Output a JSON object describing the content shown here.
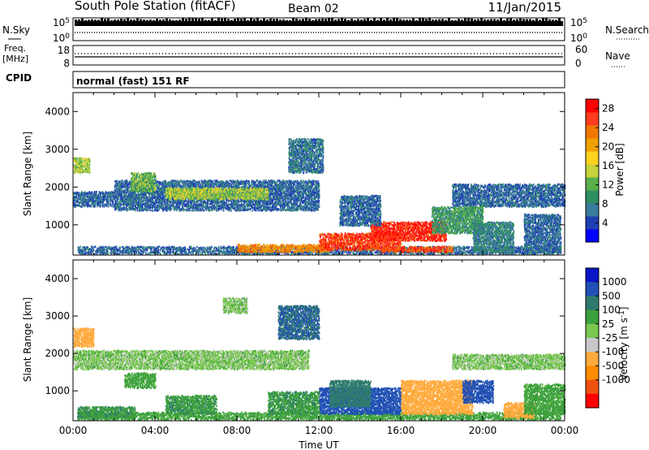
{
  "header": {
    "title": "South Pole Station (fitACF)",
    "beam": "Beam 02",
    "date": "11/Jan/2015"
  },
  "params": {
    "nsky_label": "N.Sky",
    "nsky_top": "10^5",
    "nsky_bottom": "10^0",
    "nsearch_label": "N.Search",
    "nsearch_top": "10^5",
    "nsearch_bottom": "10^0",
    "freq_label": "Freq.",
    "freq_unit": "[MHz]",
    "freq_top": "18",
    "freq_bottom": "8",
    "nave_label": "Nave",
    "nave_top": "60",
    "nave_bottom": "0",
    "cpid_label": "CPID",
    "cpid_text": "normal (fast) 151 RF"
  },
  "colors": {
    "power": [
      "#0000ff",
      "#1e3fb4",
      "#3a7a9a",
      "#2f8f60",
      "#5ab04a",
      "#c8d23c",
      "#ffd21e",
      "#f0a000",
      "#f07800",
      "#ff3c1e",
      "#ff0000"
    ],
    "velocity": [
      "#ff0000",
      "#f05010",
      "#ff8c00",
      "#ffaa3c",
      "#c8c8c8",
      "#7ac850",
      "#3ca03c",
      "#2e7a6e",
      "#2050b4",
      "#0a14c8"
    ]
  },
  "chart_data": [
    {
      "type": "heatmap",
      "name": "power",
      "xlabel": "",
      "ylabel": "Slant Range [km]",
      "xlim": [
        "00:00",
        "24:00"
      ],
      "ylim": [
        200,
        4500
      ],
      "yticks": [
        "1000",
        "2000",
        "3000",
        "4000"
      ],
      "colorbar": {
        "label": "Power [dB]",
        "ticks": [
          "4",
          "8",
          "12",
          "16",
          "20",
          "24",
          "28"
        ],
        "range": [
          0,
          30
        ]
      },
      "regions": [
        {
          "t0": 0.2,
          "t1": 23.8,
          "r0": 250,
          "r1": 450,
          "value": 6
        },
        {
          "t0": 8.0,
          "t1": 12.5,
          "r0": 300,
          "r1": 500,
          "value": 22
        },
        {
          "t0": 12.0,
          "t1": 16.0,
          "r0": 350,
          "r1": 800,
          "value": 26
        },
        {
          "t0": 14.5,
          "t1": 18.2,
          "r0": 600,
          "r1": 1100,
          "value": 27
        },
        {
          "t0": 15.0,
          "t1": 18.5,
          "r0": 300,
          "r1": 450,
          "value": 25
        },
        {
          "t0": 0.0,
          "t1": 2.0,
          "r0": 1500,
          "r1": 1900,
          "value": 6
        },
        {
          "t0": 2.0,
          "t1": 12.0,
          "r0": 1400,
          "r1": 2200,
          "value": 6
        },
        {
          "t0": 4.5,
          "t1": 9.5,
          "r0": 1700,
          "r1": 2000,
          "value": 14
        },
        {
          "t0": 2.8,
          "t1": 4.0,
          "r0": 1900,
          "r1": 2400,
          "value": 12
        },
        {
          "t0": 0.0,
          "t1": 0.8,
          "r0": 2400,
          "r1": 2800,
          "value": 14
        },
        {
          "t0": 18.5,
          "t1": 24.0,
          "r0": 1500,
          "r1": 2100,
          "value": 6
        },
        {
          "t0": 17.5,
          "t1": 20.0,
          "r0": 800,
          "r1": 1500,
          "value": 10
        },
        {
          "t0": 19.5,
          "t1": 21.5,
          "r0": 300,
          "r1": 1100,
          "value": 8
        },
        {
          "t0": 10.5,
          "t1": 12.2,
          "r0": 2400,
          "r1": 3300,
          "value": 7
        },
        {
          "t0": 13.0,
          "t1": 15.0,
          "r0": 1000,
          "r1": 1800,
          "value": 6
        },
        {
          "t0": 22.0,
          "t1": 23.8,
          "r0": 300,
          "r1": 1300,
          "value": 6
        }
      ]
    },
    {
      "type": "heatmap",
      "name": "velocity",
      "xlabel": "Time UT",
      "ylabel": "Slant Range [km]",
      "xlim": [
        "00:00",
        "24:00"
      ],
      "xticks": [
        "00:00",
        "04:00",
        "08:00",
        "12:00",
        "16:00",
        "20:00",
        "00:00"
      ],
      "ylim": [
        200,
        4500
      ],
      "yticks": [
        "1000",
        "2000",
        "3000",
        "4000"
      ],
      "colorbar": {
        "label": "Velocity [m s^-1]",
        "ticks": [
          "1000",
          "500",
          "100",
          "25",
          "-25",
          "-100",
          "-500",
          "-1000"
        ]
      },
      "regions": [
        {
          "t0": 0.2,
          "t1": 23.8,
          "r0": 250,
          "r1": 450,
          "value": 60
        },
        {
          "t0": 0.0,
          "t1": 11.5,
          "r0": 1600,
          "r1": 2100,
          "value": 0
        },
        {
          "t0": 18.5,
          "t1": 24.0,
          "r0": 1600,
          "r1": 2000,
          "value": 0
        },
        {
          "t0": 12.0,
          "t1": 16.0,
          "r0": 400,
          "r1": 1100,
          "value": 700
        },
        {
          "t0": 12.5,
          "t1": 14.5,
          "r0": 600,
          "r1": 1300,
          "value": 300
        },
        {
          "t0": 16.0,
          "t1": 19.5,
          "r0": 400,
          "r1": 1300,
          "value": -300
        },
        {
          "t0": 19.0,
          "t1": 20.5,
          "r0": 700,
          "r1": 1300,
          "value": 800
        },
        {
          "t0": 4.5,
          "t1": 7.0,
          "r0": 400,
          "r1": 900,
          "value": 80
        },
        {
          "t0": 0.2,
          "t1": 3.0,
          "r0": 300,
          "r1": 600,
          "value": 80
        },
        {
          "t0": 9.5,
          "t1": 12.0,
          "r0": 400,
          "r1": 1000,
          "value": 80
        },
        {
          "t0": 2.5,
          "t1": 4.0,
          "r0": 1100,
          "r1": 1500,
          "value": 60
        },
        {
          "t0": 0.0,
          "t1": 1.0,
          "r0": 2200,
          "r1": 2700,
          "value": -150
        },
        {
          "t0": 10.0,
          "t1": 12.0,
          "r0": 2400,
          "r1": 3300,
          "value": 500
        },
        {
          "t0": 7.3,
          "t1": 8.5,
          "r0": 3100,
          "r1": 3500,
          "value": 0
        },
        {
          "t0": 21.0,
          "t1": 22.5,
          "r0": 300,
          "r1": 700,
          "value": -300
        },
        {
          "t0": 22.0,
          "t1": 24.0,
          "r0": 400,
          "r1": 1200,
          "value": 60
        }
      ]
    }
  ]
}
